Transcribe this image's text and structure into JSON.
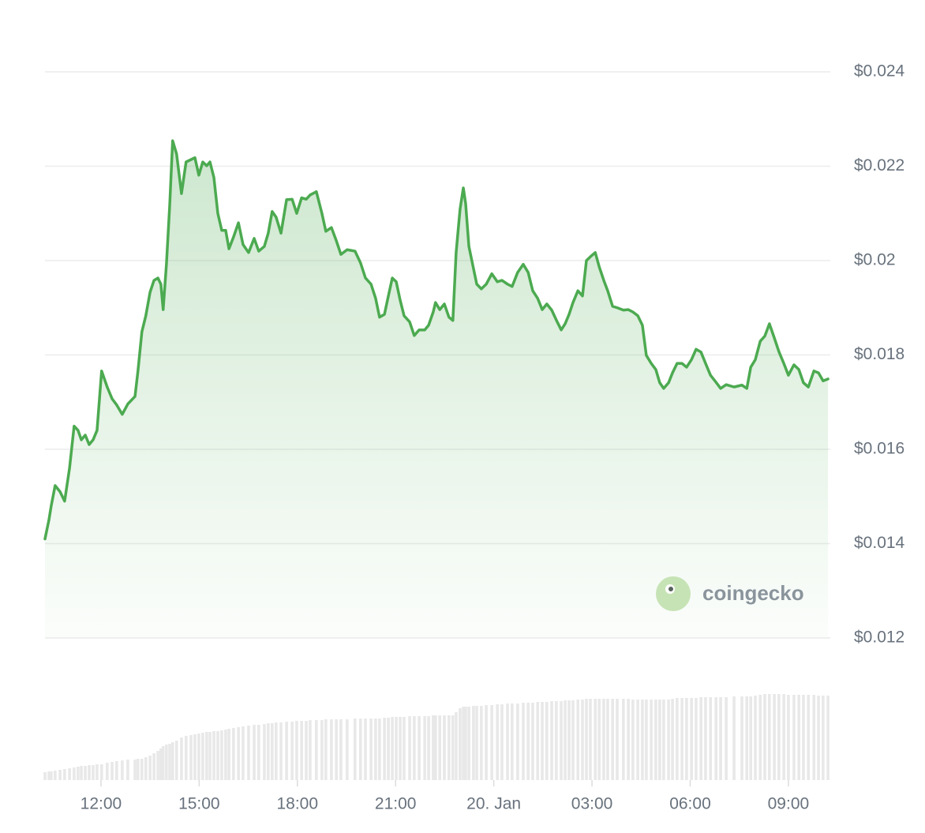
{
  "chart_data": {
    "type": "area-line",
    "watermark": "coingecko",
    "x": [
      10.29,
      10.41,
      10.48,
      10.6,
      10.75,
      10.89,
      11.04,
      11.18,
      11.3,
      11.4,
      11.52,
      11.64,
      11.76,
      11.88,
      12.02,
      12.19,
      12.34,
      12.48,
      12.65,
      12.82,
      13.04,
      13.13,
      13.25,
      13.37,
      13.5,
      13.62,
      13.74,
      13.83,
      13.9,
      14.0,
      14.1,
      14.19,
      14.31,
      14.46,
      14.6,
      14.75,
      14.87,
      14.99,
      15.11,
      15.23,
      15.33,
      15.45,
      15.57,
      15.69,
      15.81,
      15.91,
      16.05,
      16.2,
      16.34,
      16.51,
      16.68,
      16.82,
      16.99,
      17.11,
      17.23,
      17.35,
      17.5,
      17.67,
      17.84,
      17.98,
      18.13,
      18.27,
      18.39,
      18.58,
      18.75,
      18.87,
      19.04,
      19.19,
      19.33,
      19.52,
      19.76,
      19.93,
      20.08,
      20.25,
      20.39,
      20.51,
      20.66,
      20.78,
      20.9,
      21.02,
      21.14,
      21.26,
      21.43,
      21.57,
      21.72,
      21.89,
      22.01,
      22.15,
      22.22,
      22.35,
      22.49,
      22.63,
      22.75,
      22.85,
      22.97,
      23.07,
      23.14,
      23.24,
      23.38,
      23.48,
      23.62,
      23.77,
      23.94,
      24.11,
      24.25,
      24.42,
      24.56,
      24.73,
      24.9,
      25.05,
      25.19,
      25.34,
      25.48,
      25.62,
      25.77,
      25.91,
      26.06,
      26.18,
      26.3,
      26.42,
      26.57,
      26.71,
      26.83,
      26.95,
      27.1,
      27.22,
      27.36,
      27.48,
      27.63,
      27.77,
      27.96,
      28.11,
      28.25,
      28.4,
      28.54,
      28.66,
      28.81,
      28.95,
      29.07,
      29.19,
      29.34,
      29.46,
      29.6,
      29.75,
      29.89,
      30.04,
      30.18,
      30.33,
      30.47,
      30.62,
      30.79,
      30.93,
      31.1,
      31.34,
      31.58,
      31.73,
      31.85,
      31.99,
      32.14,
      32.28,
      32.42,
      32.57,
      32.71,
      32.86,
      33.0,
      33.17,
      33.32,
      33.46,
      33.61,
      33.78,
      33.92,
      34.06,
      34.21
    ],
    "series": [
      {
        "color": "#4caa50",
        "values": [
          0.0141,
          0.0145,
          0.0148,
          0.01523,
          0.0151,
          0.0149,
          0.0156,
          0.01649,
          0.0164,
          0.0162,
          0.0163,
          0.0161,
          0.0162,
          0.0164,
          0.01766,
          0.01732,
          0.01707,
          0.01694,
          0.01674,
          0.01696,
          0.01712,
          0.01766,
          0.01849,
          0.01883,
          0.01933,
          0.01958,
          0.01963,
          0.0195,
          0.01896,
          0.01992,
          0.02117,
          0.02254,
          0.02226,
          0.02142,
          0.02209,
          0.02214,
          0.02218,
          0.02181,
          0.02209,
          0.02201,
          0.02209,
          0.02176,
          0.021,
          0.02064,
          0.02064,
          0.02025,
          0.0205,
          0.0208,
          0.02034,
          0.02017,
          0.02047,
          0.0202,
          0.0203,
          0.02058,
          0.02104,
          0.02092,
          0.02058,
          0.02129,
          0.0213,
          0.021,
          0.02133,
          0.0213,
          0.02139,
          0.02146,
          0.021,
          0.02062,
          0.0207,
          0.02042,
          0.02013,
          0.02023,
          0.0202,
          0.01995,
          0.01963,
          0.0195,
          0.0192,
          0.0188,
          0.01886,
          0.01925,
          0.01963,
          0.01955,
          0.01916,
          0.01883,
          0.0187,
          0.01841,
          0.01853,
          0.01853,
          0.01863,
          0.01891,
          0.01911,
          0.01896,
          0.01908,
          0.0188,
          0.01873,
          0.02017,
          0.02109,
          0.02154,
          0.02121,
          0.0203,
          0.01983,
          0.0195,
          0.0194,
          0.0195,
          0.01972,
          0.01955,
          0.01958,
          0.0195,
          0.01945,
          0.01975,
          0.01992,
          0.01975,
          0.01936,
          0.0192,
          0.01896,
          0.01908,
          0.01895,
          0.01874,
          0.01853,
          0.01866,
          0.01886,
          0.01911,
          0.01936,
          0.01925,
          0.02,
          0.02008,
          0.02017,
          0.01987,
          0.01958,
          0.01936,
          0.01903,
          0.019,
          0.01895,
          0.01896,
          0.01891,
          0.01883,
          0.01863,
          0.01799,
          0.01782,
          0.01769,
          0.01741,
          0.01729,
          0.01741,
          0.01762,
          0.01782,
          0.01782,
          0.01774,
          0.0179,
          0.01812,
          0.01806,
          0.01782,
          0.01757,
          0.01742,
          0.01729,
          0.01737,
          0.01732,
          0.01736,
          0.01729,
          0.01774,
          0.0179,
          0.01829,
          0.0184,
          0.01866,
          0.01836,
          0.01807,
          0.01782,
          0.01757,
          0.01779,
          0.01769,
          0.01741,
          0.01732,
          0.01766,
          0.01762,
          0.01745,
          0.01749
        ]
      }
    ],
    "volume": {
      "color": "#e8e8e8",
      "values": [
        10,
        11,
        11,
        12,
        13,
        14,
        15,
        16,
        17,
        18,
        18,
        19,
        19,
        20,
        20,
        22,
        23,
        24,
        25,
        26,
        26,
        27,
        27,
        29,
        31,
        34,
        37,
        40,
        43,
        45,
        46,
        48,
        50,
        54,
        56,
        57,
        58,
        59,
        60,
        61,
        61,
        62,
        62,
        63,
        64,
        65,
        66,
        67,
        68,
        69,
        70,
        70,
        71,
        72,
        72,
        73,
        73,
        74,
        74,
        75,
        75,
        75,
        76,
        76,
        76,
        77,
        77,
        77,
        77,
        77,
        78,
        78,
        78,
        78,
        78,
        78,
        79,
        79,
        80,
        80,
        80,
        80,
        81,
        81,
        81,
        81,
        81,
        82,
        82,
        82,
        82,
        82,
        82,
        86,
        91,
        93,
        93,
        93,
        94,
        94,
        94,
        95,
        95,
        96,
        96,
        97,
        97,
        97,
        98,
        98,
        98,
        99,
        99,
        99,
        100,
        100,
        100,
        101,
        101,
        101,
        102,
        102,
        103,
        103,
        103,
        103,
        103,
        103,
        103,
        103,
        103,
        103,
        102,
        102,
        102,
        102,
        102,
        102,
        102,
        102,
        102,
        103,
        104,
        104,
        104,
        104,
        104,
        105,
        105,
        105,
        105,
        105,
        105,
        106,
        106,
        106,
        106,
        107,
        108,
        109,
        109,
        109,
        109,
        109,
        108,
        108,
        108,
        108,
        108,
        108,
        107,
        107,
        107
      ]
    },
    "xlim": [
      10.29,
      34.28
    ],
    "ylim": [
      0.012,
      0.024
    ],
    "y2lim": [
      0,
      120
    ],
    "grid": true,
    "yticks": [
      {
        "value": 0.012,
        "label": "$0.012"
      },
      {
        "value": 0.014,
        "label": "$0.014"
      },
      {
        "value": 0.016,
        "label": "$0.016"
      },
      {
        "value": 0.018,
        "label": "$0.018"
      },
      {
        "value": 0.02,
        "label": "$0.02"
      },
      {
        "value": 0.022,
        "label": "$0.022"
      },
      {
        "value": 0.024,
        "label": "$0.024"
      }
    ],
    "xticks": [
      {
        "value": 12,
        "label": "12:00"
      },
      {
        "value": 15,
        "label": "15:00"
      },
      {
        "value": 18,
        "label": "18:00"
      },
      {
        "value": 21,
        "label": "21:00"
      },
      {
        "value": 24,
        "label": "20. Jan"
      },
      {
        "value": 27,
        "label": "03:00"
      },
      {
        "value": 30,
        "label": "06:00"
      },
      {
        "value": 33,
        "label": "09:00"
      }
    ]
  }
}
